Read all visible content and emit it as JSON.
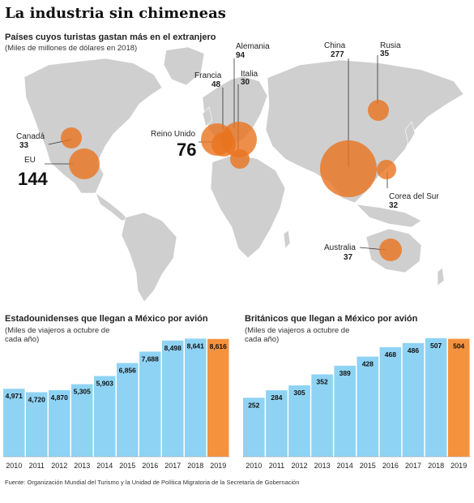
{
  "title": "La industria sin chimeneas",
  "map": {
    "subtitle": "Países cuyos turistas gastan más en el extranjero",
    "note": "(Miles de millones de dólares en 2018)",
    "bubble_color": "#e8731e",
    "countries": [
      {
        "name": "Canadá",
        "value": "33"
      },
      {
        "name": "EU",
        "value": "144"
      },
      {
        "name": "Reino Unido",
        "value": "76"
      },
      {
        "name": "Francia",
        "value": "48"
      },
      {
        "name": "Alemania",
        "value": "94"
      },
      {
        "name": "Italia",
        "value": "30"
      },
      {
        "name": "China",
        "value": "277"
      },
      {
        "name": "Rusia",
        "value": "35"
      },
      {
        "name": "Corea del Sur",
        "value": "32"
      },
      {
        "name": "Australia",
        "value": "37"
      }
    ]
  },
  "chart_data": [
    {
      "type": "bar",
      "title": "Estadounidenses que llegan a México por avión",
      "note": "(Miles de viajeros a octubre de cada año)",
      "categories": [
        "2010",
        "2011",
        "2012",
        "2013",
        "2014",
        "2015",
        "2016",
        "2017",
        "2018",
        "2019"
      ],
      "values": [
        4971,
        4720,
        4870,
        5305,
        5903,
        6856,
        7688,
        8498,
        8641,
        8616
      ],
      "value_labels": [
        "4,971",
        "4,720",
        "4,870",
        "5,305",
        "5,903",
        "6,856",
        "7,688",
        "8,498",
        "8,641",
        "8,616"
      ],
      "highlight_index": 9,
      "colors": {
        "bar": "#8fd3f4",
        "highlight": "#f5923e"
      }
    },
    {
      "type": "bar",
      "title": "Británicos que llegan a México por avión",
      "note": "(Miles de viajeros a octubre de cada año)",
      "categories": [
        "2010",
        "2011",
        "2012",
        "2013",
        "2014",
        "2015",
        "2016",
        "2017",
        "2018",
        "2019"
      ],
      "values": [
        252,
        284,
        305,
        352,
        389,
        428,
        468,
        486,
        507,
        504
      ],
      "value_labels": [
        "252",
        "284",
        "305",
        "352",
        "389",
        "428",
        "468",
        "486",
        "507",
        "504"
      ],
      "highlight_index": 9,
      "colors": {
        "bar": "#8fd3f4",
        "highlight": "#f5923e"
      }
    }
  ],
  "source": "Fuente: Organización Mundial del Turismo y la Unidad de Política Migratoria de la Secretaría de Gobernación"
}
